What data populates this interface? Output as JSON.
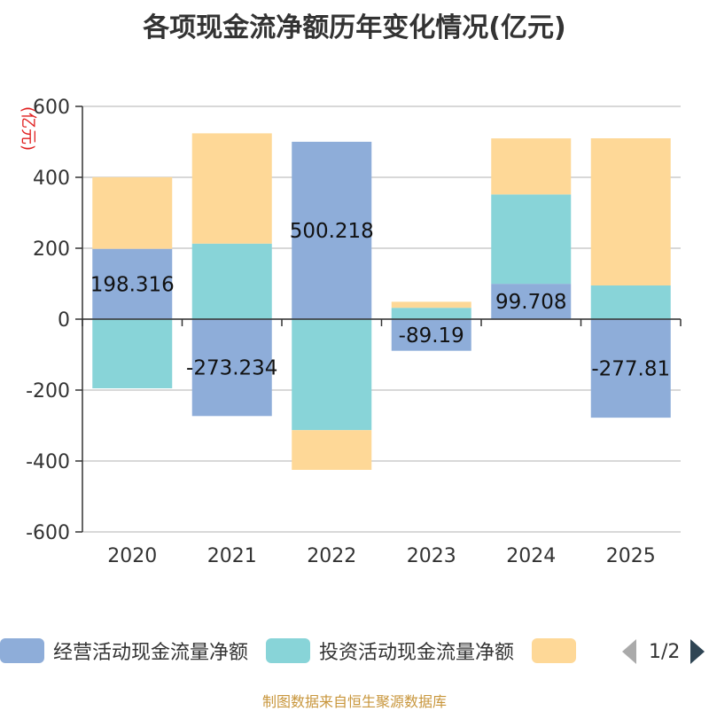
{
  "chart_data": {
    "type": "bar",
    "stacked": true,
    "title": "各项现金流净额历年变化情况(亿元)",
    "ylabel": "(亿元)",
    "ylim": [
      -600,
      600
    ],
    "yticks": [
      "600",
      "400",
      "200",
      "0",
      "-200",
      "-400",
      "-600"
    ],
    "categories": [
      "2020",
      "2021",
      "2022",
      "2023",
      "2024",
      "2025"
    ],
    "grid": true,
    "legend_position": "bottom",
    "series": [
      {
        "name": "经营活动现金流量净额",
        "color": "#8eadd9",
        "values": [
          198.316,
          -273.234,
          500.218,
          -89.19,
          99.708,
          -277.81
        ],
        "labels": [
          "198.316",
          "-273.234",
          "500.218",
          "-89.19",
          "99.708",
          "-277.81"
        ]
      },
      {
        "name": "投资活动现金流量净额",
        "color": "#88d4d8",
        "values": [
          -195,
          213,
          -313,
          32,
          252,
          95
        ]
      },
      {
        "name": "",
        "color": "#fed897",
        "values": [
          202,
          311,
          -112,
          17,
          158,
          415
        ]
      }
    ]
  },
  "legend": {
    "items": [
      "经营活动现金流量净额",
      "投资活动现金流量净额",
      ""
    ],
    "pager": "1/2"
  },
  "source_note": "制图数据来自恒生聚源数据库"
}
